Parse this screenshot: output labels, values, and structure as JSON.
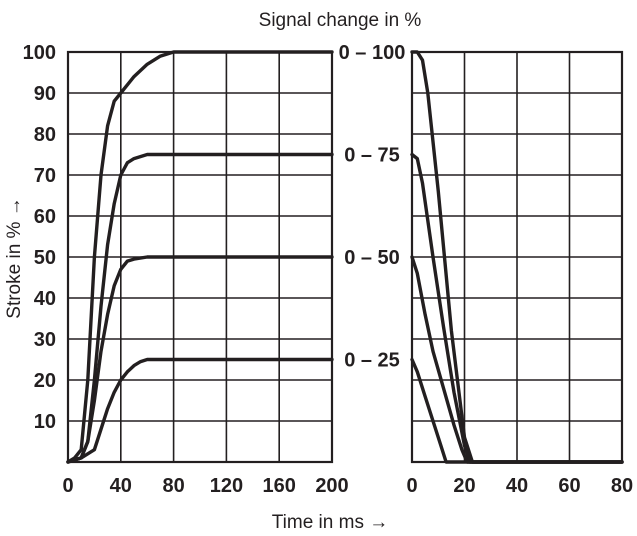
{
  "chart_data": {
    "title": "Signal change in %",
    "xlabel": "Time in ms →",
    "ylabel": "Stroke in % →",
    "y_ticks": [
      "10",
      "20",
      "30",
      "40",
      "50",
      "60",
      "70",
      "80",
      "90",
      "100"
    ],
    "line_color": "#231f20",
    "grid": true,
    "panels": [
      {
        "type": "line",
        "name": "rise",
        "xlim": [
          0,
          200
        ],
        "ylim": [
          0,
          100
        ],
        "x_ticks": [
          "0",
          "40",
          "80",
          "120",
          "160",
          "200"
        ],
        "series": [
          {
            "name": "0 – 100",
            "x": [
              0,
              5,
              10,
              15,
              20,
              25,
              30,
              35,
              40,
              50,
              60,
              70,
              80,
              120,
              160,
              200
            ],
            "y": [
              0,
              1,
              3,
              20,
              50,
              70,
              82,
              88,
              90,
              94,
              97,
              99,
              100,
              100,
              100,
              100
            ]
          },
          {
            "name": "0 – 75",
            "x": [
              0,
              10,
              15,
              20,
              25,
              30,
              35,
              40,
              45,
              50,
              60,
              80,
              120,
              160,
              200
            ],
            "y": [
              0,
              1,
              5,
              20,
              38,
              53,
              63,
              70,
              73,
              74,
              75,
              75,
              75,
              75,
              75
            ]
          },
          {
            "name": "0 – 50",
            "x": [
              0,
              10,
              15,
              20,
              25,
              30,
              35,
              40,
              45,
              50,
              60,
              80,
              120,
              160,
              200
            ],
            "y": [
              0,
              1,
              5,
              15,
              27,
              36,
              43,
              47,
              49,
              49.5,
              50,
              50,
              50,
              50,
              50
            ]
          },
          {
            "name": "0 – 25",
            "x": [
              0,
              10,
              15,
              20,
              25,
              30,
              35,
              40,
              45,
              50,
              55,
              60,
              80,
              120,
              160,
              200
            ],
            "y": [
              0,
              1,
              2,
              3,
              8,
              13,
              17,
              20,
              22,
              23.5,
              24.5,
              25,
              25,
              25,
              25,
              25
            ]
          }
        ]
      },
      {
        "type": "line",
        "name": "fall",
        "xlim": [
          0,
          80
        ],
        "ylim": [
          0,
          100
        ],
        "x_ticks": [
          "0",
          "20",
          "40",
          "60",
          "80"
        ],
        "series": [
          {
            "name": "0 – 100",
            "x": [
              0,
              2,
              4,
              6,
              10,
              15,
              20,
              23,
              80
            ],
            "y": [
              100,
              100,
              98,
              90,
              66,
              32,
              6,
              0,
              0
            ]
          },
          {
            "name": "0 – 75",
            "x": [
              0,
              2,
              4,
              8,
              12,
              16,
              20,
              22,
              80
            ],
            "y": [
              75,
              74,
              68,
              50,
              33,
              17,
              4,
              0,
              0
            ]
          },
          {
            "name": "0 – 50",
            "x": [
              0,
              2,
              5,
              8,
              12,
              16,
              19,
              21,
              80
            ],
            "y": [
              50,
              46,
              36,
              27,
              18,
              9,
              3,
              0,
              0
            ]
          },
          {
            "name": "0 – 25",
            "x": [
              0,
              2,
              5,
              8,
              11,
              13,
              80
            ],
            "y": [
              25,
              22,
              16,
              10,
              4,
              0,
              0
            ]
          }
        ]
      }
    ]
  }
}
